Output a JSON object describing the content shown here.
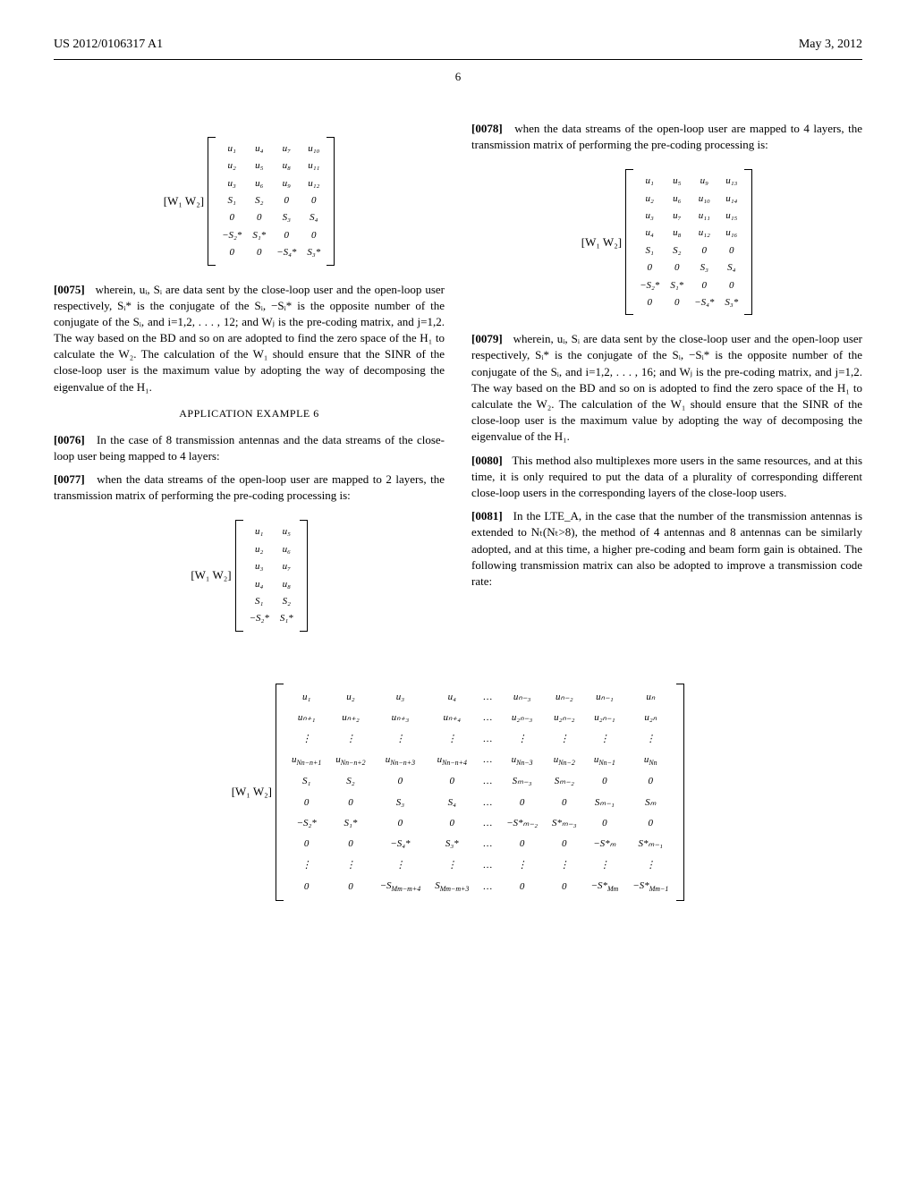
{
  "header": {
    "left": "US 2012/0106317 A1",
    "right": "May 3, 2012"
  },
  "page_number": "6",
  "matrix1": {
    "prefix": "[W₁ W₂]",
    "rows": [
      [
        "u₁",
        "u₄",
        "u₇",
        "u₁₀"
      ],
      [
        "u₂",
        "u₅",
        "u₈",
        "u₁₁"
      ],
      [
        "u₃",
        "u₆",
        "u₉",
        "u₁₂"
      ],
      [
        "S₁",
        "S₂",
        "0",
        "0"
      ],
      [
        "0",
        "0",
        "S₃",
        "S₄"
      ],
      [
        "−S₂*",
        "S₁*",
        "0",
        "0"
      ],
      [
        "0",
        "0",
        "−S₄*",
        "S₃*"
      ]
    ]
  },
  "para0075": {
    "num": "[0075]",
    "text": "wherein, uᵢ, Sᵢ are data sent by the close-loop user and the open-loop user respectively, Sᵢ* is the conjugate of the Sᵢ, −Sᵢ* is the opposite number of the conjugate of the Sᵢ, and i=1,2, . . . , 12; and Wⱼ is the pre-coding matrix, and j=1,2. The way based on the BD and so on are adopted to find the zero space of the H₁ to calculate the W₂. The calculation of the W₁ should ensure that the SINR of the close-loop user is the maximum value by adopting the way of decomposing the eigenvalue of the H₁."
  },
  "example6_title": "APPLICATION EXAMPLE 6",
  "para0076": {
    "num": "[0076]",
    "text": "In the case of 8 transmission antennas and the data streams of the close-loop user being mapped to 4 layers:"
  },
  "para0077": {
    "num": "[0077]",
    "text": "when the data streams of the open-loop user are mapped to 2 layers, the transmission matrix of performing the pre-coding processing is:"
  },
  "matrix2": {
    "prefix": "[W₁ W₂]",
    "rows": [
      [
        "u₁",
        "u₅"
      ],
      [
        "u₂",
        "u₆"
      ],
      [
        "u₃",
        "u₇"
      ],
      [
        "u₄",
        "u₈"
      ],
      [
        "S₁",
        "S₂"
      ],
      [
        "−S₂*",
        "S₁*"
      ]
    ]
  },
  "para0078": {
    "num": "[0078]",
    "text": "when the data streams of the open-loop user are mapped to 4 layers, the transmission matrix of performing the pre-coding processing is:"
  },
  "matrix3": {
    "prefix": "[W₁ W₂]",
    "rows": [
      [
        "u₁",
        "u₅",
        "u₉",
        "u₁₃"
      ],
      [
        "u₂",
        "u₆",
        "u₁₀",
        "u₁₄"
      ],
      [
        "u₃",
        "u₇",
        "u₁₁",
        "u₁₅"
      ],
      [
        "u₄",
        "u₈",
        "u₁₂",
        "u₁₆"
      ],
      [
        "S₁",
        "S₂",
        "0",
        "0"
      ],
      [
        "0",
        "0",
        "S₃",
        "S₄"
      ],
      [
        "−S₂*",
        "S₁*",
        "0",
        "0"
      ],
      [
        "0",
        "0",
        "−S₄*",
        "S₃*"
      ]
    ]
  },
  "para0079": {
    "num": "[0079]",
    "text": "wherein, uᵢ, Sᵢ are data sent by the close-loop user and the open-loop user respectively, Sᵢ* is the conjugate of the Sᵢ, −Sᵢ* is the opposite number of the conjugate of the Sᵢ, and i=1,2, . . . , 16; and Wⱼ is the pre-coding matrix, and j=1,2. The way based on the BD and so on is adopted to find the zero space of the H₁ to calculate the W₂. The calculation of the W₁ should ensure that the SINR of the close-loop user is the maximum value by adopting the way of decomposing the eigenvalue of the H₁."
  },
  "para0080": {
    "num": "[0080]",
    "text": "This method also multiplexes more users in the same resources, and at this time, it is only required to put the data of a plurality of corresponding different close-loop users in the corresponding layers of the close-loop users."
  },
  "para0081": {
    "num": "[0081]",
    "text": "In the LTE_A, in the case that the number of the transmission antennas is extended to Nₜ(Nₜ>8), the method of 4 antennas and 8 antennas can be similarly adopted, and at this time, a higher pre-coding and beam form gain is obtained. The following transmission matrix can also be adopted to improve a transmission code rate:"
  },
  "matrix4": {
    "prefix": "[W₁ W₂]",
    "rows": [
      [
        "u₁",
        "u₂",
        "u₃",
        "u₄",
        "…",
        "uₙ₋₃",
        "uₙ₋₂",
        "uₙ₋₁",
        "uₙ"
      ],
      [
        "uₙ₊₁",
        "uₙ₊₂",
        "uₙ₊₃",
        "uₙ₊₄",
        "…",
        "u₂ₙ₋₃",
        "u₂ₙ₋₂",
        "u₂ₙ₋₁",
        "u₂ₙ"
      ],
      [
        "⋮",
        "⋮",
        "⋮",
        "⋮",
        "…",
        "⋮",
        "⋮",
        "⋮",
        "⋮"
      ],
      [
        "u_{Nn−n+1}",
        "u_{Nn−n+2}",
        "u_{Nn−n+3}",
        "u_{Nn−n+4}",
        "…",
        "u_{Nn−3}",
        "u_{Nn−2}",
        "u_{Nn−1}",
        "u_{Nn}"
      ],
      [
        "S₁",
        "S₂",
        "0",
        "0",
        "…",
        "Sₘ₋₃",
        "Sₘ₋₂",
        "0",
        "0"
      ],
      [
        "0",
        "0",
        "S₃",
        "S₄",
        "…",
        "0",
        "0",
        "Sₘ₋₁",
        "Sₘ"
      ],
      [
        "−S₂*",
        "S₁*",
        "0",
        "0",
        "…",
        "−S*ₘ₋₂",
        "S*ₘ₋₃",
        "0",
        "0"
      ],
      [
        "0",
        "0",
        "−S₄*",
        "S₃*",
        "…",
        "0",
        "0",
        "−S*ₘ",
        "S*ₘ₋₁"
      ],
      [
        "⋮",
        "⋮",
        "⋮",
        "⋮",
        "…",
        "⋮",
        "⋮",
        "⋮",
        "⋮"
      ],
      [
        "0",
        "0",
        "−S_{Mm−m+4}",
        "S_{Mm−m+3}",
        "…",
        "0",
        "0",
        "−S*_{Mm}",
        "−S*_{Mm−1}"
      ]
    ]
  }
}
